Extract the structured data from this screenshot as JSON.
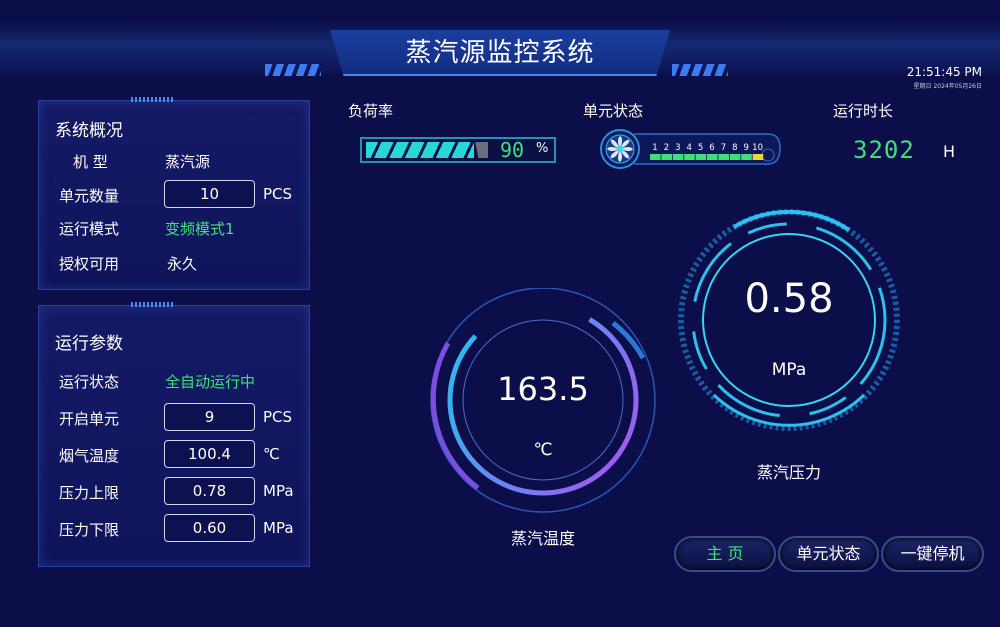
{
  "header": {
    "title": "蒸汽源监控系统",
    "time": "21:51:45 PM",
    "date": "星期日  2024年05月26日"
  },
  "overview": {
    "title": "系统概况",
    "model_label": "机 型",
    "model_value": "蒸汽源",
    "unit_count_label": "单元数量",
    "unit_count_value": "10",
    "unit_count_unit": "PCS",
    "mode_label": "运行模式",
    "mode_value": "变频模式1",
    "license_label": "授权可用",
    "license_value": "永久"
  },
  "params": {
    "title": "运行参数",
    "status_label": "运行状态",
    "status_value": "全自动运行中",
    "open_units_label": "开启单元",
    "open_units_value": "9",
    "open_units_unit": "PCS",
    "flue_temp_label": "烟气温度",
    "flue_temp_value": "100.4",
    "flue_temp_unit": "℃",
    "p_upper_label": "压力上限",
    "p_upper_value": "0.78",
    "p_upper_unit": "MPa",
    "p_lower_label": "压力下限",
    "p_lower_value": "0.60",
    "p_lower_unit": "MPa"
  },
  "load": {
    "label": "负荷率",
    "value": "90",
    "percent": 90,
    "unit": "%"
  },
  "unit_status": {
    "label": "单元状态",
    "units": [
      "1",
      "2",
      "3",
      "4",
      "5",
      "6",
      "7",
      "8",
      "9",
      "10"
    ],
    "states": [
      "on",
      "on",
      "on",
      "on",
      "on",
      "on",
      "on",
      "on",
      "on",
      "warn"
    ],
    "colors": {
      "on": "#3fe07a",
      "warn": "#e8d63a"
    }
  },
  "runtime": {
    "label": "运行时长",
    "value": "3202",
    "unit": "H"
  },
  "temperature": {
    "value": "163.5",
    "unit": "℃",
    "label": "蒸汽温度"
  },
  "pressure": {
    "value": "0.58",
    "unit": "MPa",
    "label": "蒸汽压力"
  },
  "buttons": {
    "home": "主 页",
    "unit_status": "单元状态",
    "stop": "一键停机"
  },
  "colors": {
    "accent_green": "#3fe07a",
    "background": "#0b0e48",
    "cyan": "#27d8d8"
  }
}
